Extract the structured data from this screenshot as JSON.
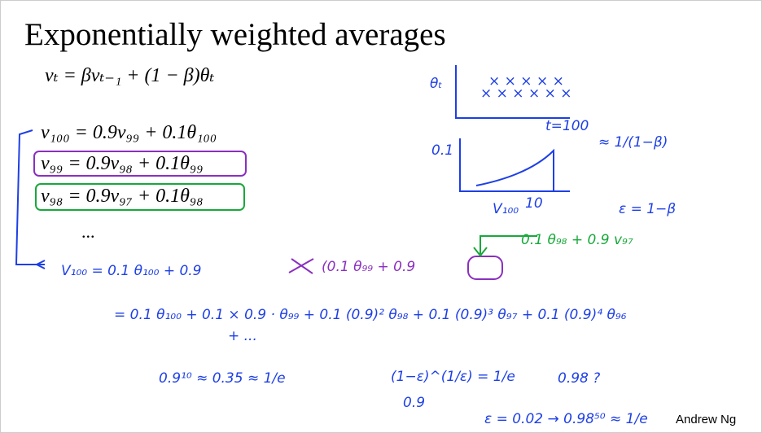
{
  "header": {
    "title": "Exponentially weighted averages"
  },
  "equations": [
    "vₜ = βvₜ₋₁ + (1 − β)θₜ",
    "v₁₀₀ = 0.9v₉₉ + 0.1θ₁₀₀",
    "v₉₉ = 0.9v₉₈ + 0.1θ₉₉",
    "v₉₈ = 0.9v₉₇ + 0.1θ₉₈",
    "..."
  ],
  "notes": {
    "expansion_1": "V₁₀₀ = 0.1 θ₁₀₀ + 0.9",
    "expansion_1b": "(0.1 θ₉₉ + 0.9",
    "expansion_2": "= 0.1 θ₁₀₀ + 0.1 × 0.9 · θ₉₉ + 0.1 (0.9)² θ₉₈ + 0.1 (0.9)³ θ₉₇ + 0.1 (0.9)⁴ θ₉₆",
    "expansion_3": "+ ...",
    "green_note": "0.1 θ₉₈ + 0.9 v₉₇",
    "decay": "0.9¹⁰ ≈ 0.35 ≈ 1/e",
    "limit": "(1−ε)^(1/ε) = 1/e",
    "limit_under": "0.9",
    "question": "0.98 ?",
    "epsilon_example": "ε = 0.02 → 0.98⁵⁰ ≈ 1/e",
    "approx": "≈ 1/(1−β)",
    "epsilon_def": "ε = 1−β",
    "plot_theta": "θₜ",
    "plot_t": "t=100",
    "plot_01": "0.1",
    "plot_v100": "V₁₀₀",
    "plot_10": "10"
  },
  "footer": {
    "author": "Andrew Ng"
  }
}
